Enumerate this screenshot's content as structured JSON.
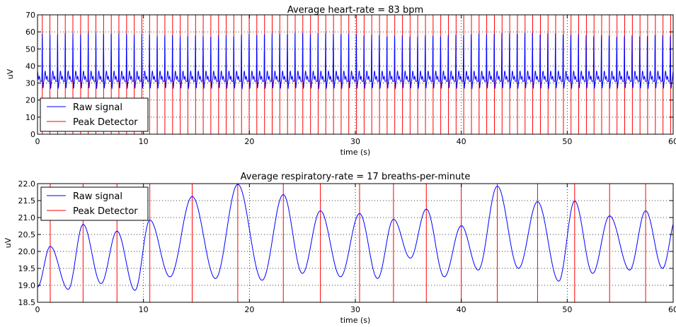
{
  "chart_data": [
    {
      "type": "line",
      "title": "Average heart-rate = 83 bpm",
      "xlabel": "time (s)",
      "ylabel": "uV",
      "xlim": [
        0,
        60
      ],
      "ylim": [
        0,
        70
      ],
      "xticks": [
        "0",
        "10",
        "20",
        "30",
        "40",
        "50",
        "60"
      ],
      "yticks": [
        "0",
        "10",
        "20",
        "30",
        "40",
        "50",
        "60",
        "70"
      ],
      "grid": true,
      "legend_position": "lower-left",
      "legend": [
        "Raw signal",
        "Peak Detector"
      ],
      "series": [
        {
          "name": "Raw signal",
          "color": "#0000ff",
          "style": "periodic ECG-like pulses",
          "beat_period_s": 0.723,
          "first_peak_s": 0.45,
          "peak_uV": 59,
          "secondary_uV": 37,
          "trough_uV": 27,
          "baseline_uV": 31
        },
        {
          "name": "Peak Detector",
          "color": "#ff0000",
          "style": "vertical lines at detected peaks",
          "x": [
            0.45,
            1.17,
            1.9,
            2.62,
            3.34,
            4.07,
            4.79,
            5.51,
            6.24,
            6.96,
            7.68,
            8.41,
            9.13,
            9.85,
            10.58,
            11.3,
            12.02,
            12.75,
            13.47,
            14.19,
            14.92,
            15.64,
            16.36,
            17.09,
            17.81,
            18.53,
            19.26,
            19.98,
            20.7,
            21.43,
            22.15,
            22.87,
            23.6,
            24.32,
            25.04,
            25.77,
            26.49,
            27.21,
            27.94,
            28.66,
            29.38,
            30.11,
            30.83,
            31.55,
            32.28,
            33.0,
            33.72,
            34.45,
            35.17,
            35.89,
            36.62,
            37.34,
            38.06,
            38.79,
            39.51,
            40.23,
            40.96,
            41.68,
            42.4,
            43.13,
            43.85,
            44.57,
            45.3,
            46.02,
            46.74,
            47.47,
            48.19,
            48.91,
            49.64,
            50.36,
            51.08,
            51.81,
            52.53,
            53.25,
            53.98,
            54.7,
            55.42,
            56.15,
            56.87,
            57.59,
            58.32,
            59.04,
            59.76
          ]
        }
      ]
    },
    {
      "type": "line",
      "title": "Average respiratory-rate = 17 breaths-per-minute",
      "xlabel": "time (s)",
      "ylabel": "uV",
      "xlim": [
        0,
        60
      ],
      "ylim": [
        18.5,
        22.0
      ],
      "xticks": [
        "0",
        "10",
        "20",
        "30",
        "40",
        "50",
        "60"
      ],
      "yticks": [
        "18.5",
        "19.0",
        "19.5",
        "20.0",
        "20.5",
        "21.0",
        "21.5",
        "22.0"
      ],
      "grid": true,
      "legend_position": "upper-left",
      "legend": [
        "Raw signal",
        "Peak Detector"
      ],
      "series": [
        {
          "name": "Raw signal",
          "color": "#0000ff",
          "peaks": {
            "x": [
              1.2,
              4.3,
              7.5,
              10.6,
              14.6,
              18.9,
              23.2,
              26.7,
              30.4,
              33.6,
              36.7,
              40.0,
              43.4,
              47.2,
              50.7,
              54.0,
              57.4
            ],
            "y": [
              20.15,
              20.8,
              20.6,
              20.93,
              21.62,
              21.98,
              21.68,
              21.2,
              21.12,
              20.95,
              21.25,
              20.76,
              21.93,
              21.47,
              21.49,
              21.05,
              21.2
            ]
          },
          "troughs": {
            "x": [
              0.0,
              2.9,
              6.0,
              9.2,
              12.5,
              16.8,
              21.2,
              25.0,
              28.6,
              32.1,
              35.2,
              38.4,
              41.6,
              45.4,
              49.2,
              52.4,
              55.9,
              59.0,
              60.3
            ],
            "y": [
              18.95,
              18.88,
              19.05,
              18.85,
              19.25,
              19.2,
              19.15,
              19.35,
              19.25,
              19.2,
              19.8,
              19.25,
              19.45,
              19.5,
              19.12,
              19.35,
              19.45,
              19.5,
              21.0
            ]
          }
        },
        {
          "name": "Peak Detector",
          "color": "#ff0000",
          "style": "vertical lines at detected peaks",
          "x": [
            1.2,
            4.3,
            7.5,
            10.6,
            14.6,
            18.9,
            23.2,
            26.7,
            30.4,
            33.6,
            36.7,
            40.0,
            43.4,
            47.2,
            50.7,
            54.0,
            57.4
          ]
        }
      ]
    }
  ]
}
